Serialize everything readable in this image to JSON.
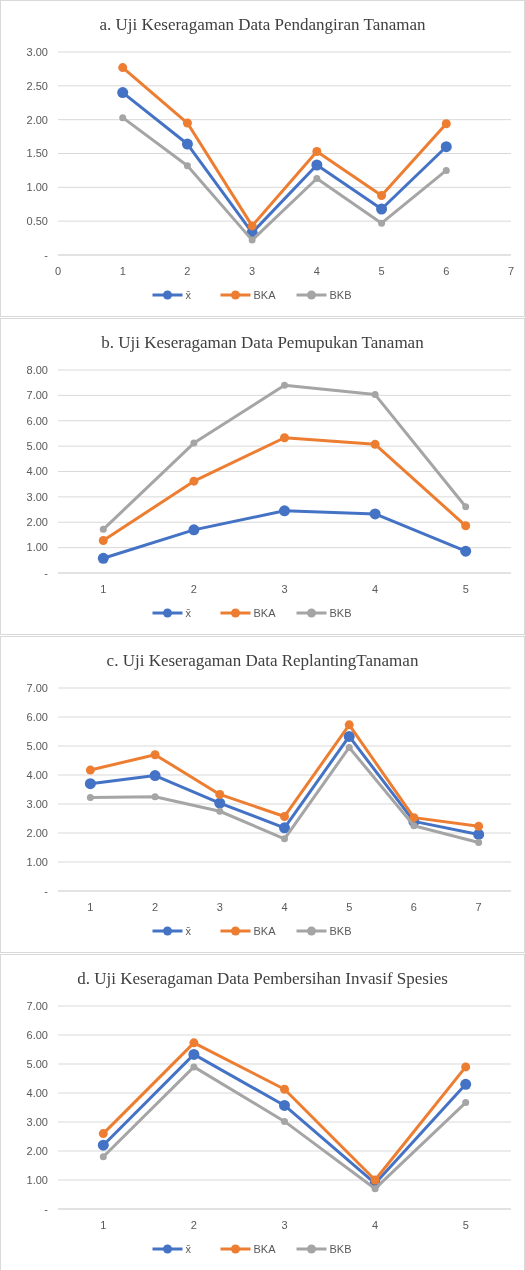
{
  "chart_data": [
    {
      "type": "line",
      "title": "a. Uji Keseragaman Data Pendangiran Tanaman",
      "x": [
        1,
        2,
        3,
        4,
        5,
        6
      ],
      "xlim": [
        0,
        7
      ],
      "xticks": [
        0,
        1,
        2,
        3,
        4,
        5,
        6,
        7
      ],
      "ylim": [
        0,
        3
      ],
      "yticks": [
        {
          "value": 0,
          "label": "-"
        },
        {
          "value": 0.5,
          "label": "0.50"
        },
        {
          "value": 1,
          "label": "1.00"
        },
        {
          "value": 1.5,
          "label": "1.50"
        },
        {
          "value": 2,
          "label": "2.00"
        },
        {
          "value": 2.5,
          "label": "2.50"
        },
        {
          "value": 3,
          "label": "3.00"
        }
      ],
      "grid": "y",
      "legend": "bottom",
      "marker": "circle",
      "series": [
        {
          "name": "x̄",
          "color": "#4472c4",
          "values": [
            2.4,
            1.64,
            0.33,
            1.33,
            0.68,
            1.6
          ]
        },
        {
          "name": "BKA",
          "color": "#ed7d31",
          "values": [
            2.77,
            1.95,
            0.43,
            1.53,
            0.88,
            1.94
          ]
        },
        {
          "name": "BKB",
          "color": "#a5a5a5",
          "values": [
            2.03,
            1.32,
            0.22,
            1.13,
            0.47,
            1.25
          ]
        }
      ]
    },
    {
      "type": "line",
      "title": "b. Uji Keseragaman  Data Pemupukan  Tanaman",
      "categories": [
        "1",
        "2",
        "3",
        "4",
        "5"
      ],
      "ylim": [
        0,
        8
      ],
      "yticks": [
        {
          "value": 0,
          "label": "-"
        },
        {
          "value": 1,
          "label": "1.00"
        },
        {
          "value": 2,
          "label": "2.00"
        },
        {
          "value": 3,
          "label": "3.00"
        },
        {
          "value": 4,
          "label": "4.00"
        },
        {
          "value": 5,
          "label": "5.00"
        },
        {
          "value": 6,
          "label": "6.00"
        },
        {
          "value": 7,
          "label": "7.00"
        },
        {
          "value": 8,
          "label": "8.00"
        }
      ],
      "grid": "y",
      "legend": "bottom",
      "marker": "circle",
      "series": [
        {
          "name": "x̄",
          "color": "#4472c4",
          "values": [
            0.58,
            1.7,
            2.45,
            2.33,
            0.86
          ]
        },
        {
          "name": "BKA",
          "color": "#ed7d31",
          "values": [
            1.28,
            3.62,
            5.33,
            5.07,
            1.86
          ]
        },
        {
          "name": "BKB",
          "color": "#a5a5a5",
          "values": [
            1.72,
            5.12,
            7.4,
            7.03,
            2.61
          ]
        }
      ]
    },
    {
      "type": "line",
      "title": "c. Uji Keseragaman  Data ReplantingTanaman",
      "categories": [
        "1",
        "2",
        "3",
        "4",
        "5",
        "6",
        "7"
      ],
      "ylim": [
        0,
        7
      ],
      "yticks": [
        {
          "value": 0,
          "label": "-"
        },
        {
          "value": 1,
          "label": "1.00"
        },
        {
          "value": 2,
          "label": "2.00"
        },
        {
          "value": 3,
          "label": "3.00"
        },
        {
          "value": 4,
          "label": "4.00"
        },
        {
          "value": 5,
          "label": "5.00"
        },
        {
          "value": 6,
          "label": "6.00"
        },
        {
          "value": 7,
          "label": "7.00"
        }
      ],
      "grid": "y",
      "legend": "bottom",
      "marker": "circle",
      "series": [
        {
          "name": "x̄",
          "color": "#4472c4",
          "values": [
            3.7,
            3.98,
            3.03,
            2.18,
            5.33,
            2.4,
            1.95
          ]
        },
        {
          "name": "BKA",
          "color": "#ed7d31",
          "values": [
            4.17,
            4.7,
            3.33,
            2.57,
            5.73,
            2.53,
            2.23
          ]
        },
        {
          "name": "BKB",
          "color": "#a5a5a5",
          "values": [
            3.22,
            3.25,
            2.75,
            1.8,
            4.95,
            2.25,
            1.67
          ]
        }
      ]
    },
    {
      "type": "line",
      "title": "d. Uji Keseragaman Data Pembersihan Invasif Spesies",
      "categories": [
        "1",
        "2",
        "3",
        "4",
        "5"
      ],
      "ylim": [
        0,
        7
      ],
      "yticks": [
        {
          "value": 0,
          "label": "-"
        },
        {
          "value": 1,
          "label": "1.00"
        },
        {
          "value": 2,
          "label": "2.00"
        },
        {
          "value": 3,
          "label": "3.00"
        },
        {
          "value": 4,
          "label": "4.00"
        },
        {
          "value": 5,
          "label": "5.00"
        },
        {
          "value": 6,
          "label": "6.00"
        },
        {
          "value": 7,
          "label": "7.00"
        }
      ],
      "grid": "y",
      "legend": "bottom",
      "marker": "circle",
      "series": [
        {
          "name": "x̄",
          "color": "#4472c4",
          "values": [
            2.2,
            5.33,
            3.57,
            0.88,
            4.3
          ]
        },
        {
          "name": "BKA",
          "color": "#ed7d31",
          "values": [
            2.6,
            5.73,
            4.13,
            1.0,
            4.9
          ]
        },
        {
          "name": "BKB",
          "color": "#a5a5a5",
          "values": [
            1.8,
            4.9,
            3.02,
            0.7,
            3.67
          ]
        }
      ]
    }
  ]
}
